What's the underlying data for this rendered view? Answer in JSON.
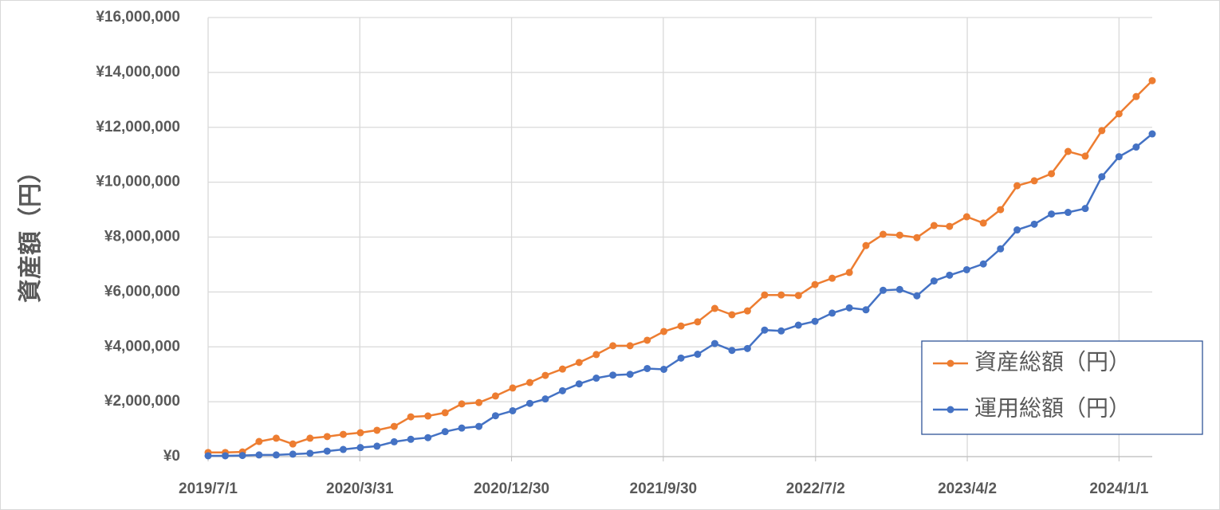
{
  "chart_data": {
    "type": "line",
    "y_label": "資産額（円）",
    "x": [
      "2019/7/1",
      "2019/8/1",
      "2019/9/1",
      "2019/10/1",
      "2019/11/1",
      "2019/12/1",
      "2020/1/1",
      "2020/2/1",
      "2020/3/1",
      "2020/4/1",
      "2020/5/1",
      "2020/6/1",
      "2020/7/1",
      "2020/8/1",
      "2020/9/1",
      "2020/10/1",
      "2020/11/1",
      "2020/12/1",
      "2021/1/1",
      "2021/2/1",
      "2021/3/1",
      "2021/4/1",
      "2021/5/1",
      "2021/6/1",
      "2021/7/1",
      "2021/8/1",
      "2021/9/1",
      "2021/10/1",
      "2021/11/1",
      "2021/12/1",
      "2022/1/1",
      "2022/2/1",
      "2022/3/1",
      "2022/4/1",
      "2022/5/1",
      "2022/6/1",
      "2022/7/1",
      "2022/8/1",
      "2022/9/1",
      "2022/10/1",
      "2022/11/1",
      "2022/12/1",
      "2023/1/1",
      "2023/2/1",
      "2023/3/1",
      "2023/4/1",
      "2023/5/1",
      "2023/6/1",
      "2023/7/1",
      "2023/8/1",
      "2023/9/1",
      "2023/10/1",
      "2023/11/1",
      "2023/12/1",
      "2024/1/1",
      "2024/2/1",
      "2024/3/1"
    ],
    "series": [
      {
        "name": "資産総額（円）",
        "color": "#ed7d31",
        "values": [
          150000,
          150000,
          170000,
          550000,
          670000,
          460000,
          670000,
          730000,
          810000,
          870000,
          960000,
          1100000,
          1450000,
          1480000,
          1600000,
          1920000,
          1970000,
          2210000,
          2500000,
          2700000,
          2960000,
          3190000,
          3430000,
          3720000,
          4040000,
          4040000,
          4240000,
          4560000,
          4760000,
          4910000,
          5400000,
          5170000,
          5310000,
          5890000,
          5890000,
          5870000,
          6270000,
          6500000,
          6710000,
          7690000,
          8100000,
          8070000,
          7980000,
          8420000,
          8390000,
          8740000,
          8510000,
          9000000,
          9870000,
          10050000,
          10310000,
          11120000,
          10950000,
          11880000,
          12490000,
          13120000,
          13700000
        ]
      },
      {
        "name": "運用総額（円）",
        "color": "#4472c4",
        "values": [
          30000,
          30000,
          40000,
          60000,
          60000,
          90000,
          120000,
          200000,
          260000,
          330000,
          380000,
          540000,
          630000,
          690000,
          910000,
          1040000,
          1100000,
          1490000,
          1670000,
          1940000,
          2100000,
          2400000,
          2650000,
          2860000,
          2970000,
          3000000,
          3210000,
          3180000,
          3590000,
          3730000,
          4120000,
          3870000,
          3940000,
          4610000,
          4580000,
          4790000,
          4930000,
          5230000,
          5420000,
          5350000,
          6060000,
          6090000,
          5860000,
          6400000,
          6610000,
          6810000,
          7020000,
          7570000,
          8260000,
          8470000,
          8840000,
          8900000,
          9040000,
          10200000,
          10930000,
          11280000,
          11760000
        ]
      }
    ],
    "xlim": [
      "2019/7/1",
      "2024/3/1"
    ],
    "xticks": [
      "2019/7/1",
      "2020/3/31",
      "2020/12/30",
      "2021/9/30",
      "2022/7/2",
      "2023/4/2",
      "2024/1/1"
    ],
    "ylim": [
      0,
      16000000
    ],
    "yticks": [
      {
        "value": 0,
        "label": "¥0"
      },
      {
        "value": 2000000,
        "label": "¥2,000,000"
      },
      {
        "value": 4000000,
        "label": "¥4,000,000"
      },
      {
        "value": 6000000,
        "label": "¥6,000,000"
      },
      {
        "value": 8000000,
        "label": "¥8,000,000"
      },
      {
        "value": 10000000,
        "label": "¥10,000,000"
      },
      {
        "value": 12000000,
        "label": "¥12,000,000"
      },
      {
        "value": 14000000,
        "label": "¥14,000,000"
      },
      {
        "value": 16000000,
        "label": "¥16,000,000"
      }
    ],
    "grid": true,
    "legend": "lower right"
  }
}
